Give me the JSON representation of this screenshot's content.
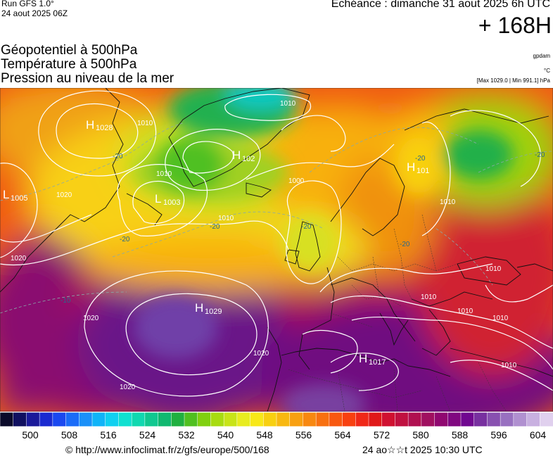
{
  "header": {
    "run_model": "Run GFS 1.0°",
    "run_date": "24 aout 2025 06Z",
    "valid_time": "Echéance : dimanche 31 aout 2025 6h UTC",
    "lead_time": "+ 168H"
  },
  "titles": {
    "line1": "Géopotentiel à 500hPa",
    "line2": "Température à 500hPa",
    "line3": "Pression au niveau de la mer"
  },
  "units": {
    "geopotential": "gpdam",
    "temperature": "°C",
    "pressure_range": "[Max 1029.0 | Min 991.1] hPa"
  },
  "pressure_centers": [
    {
      "label": "H",
      "value": "1028",
      "region": "northern-canada"
    },
    {
      "label": "L",
      "value": "1005",
      "region": "labrador"
    },
    {
      "label": "L",
      "value": "1003",
      "region": "south-of-greenland"
    },
    {
      "label": "H",
      "value": "102",
      "region": "greenland"
    },
    {
      "label": "H",
      "value": "1029",
      "region": "azores"
    },
    {
      "label": "H",
      "value": "1017",
      "region": "north-africa"
    },
    {
      "label": "H",
      "value": "101",
      "region": "scandinavia"
    }
  ],
  "isobar_labels": [
    "1010",
    "1020",
    "1010",
    "1020",
    "1000",
    "1010",
    "1020",
    "1020",
    "1020",
    "1010",
    "1010",
    "1010",
    "1010",
    "1010",
    "1010",
    "1010"
  ],
  "isotherm_labels": [
    "-20",
    "-20",
    "-20",
    "-20",
    "-20",
    "-20",
    "-10",
    "-20"
  ],
  "color_scale": {
    "colors": [
      "#0a0a2a",
      "#101060",
      "#1a1a9a",
      "#1a2ad0",
      "#1a48f0",
      "#1a6cf8",
      "#1a90f8",
      "#10b4f8",
      "#10d0f0",
      "#10e0d0",
      "#10d8b0",
      "#10c890",
      "#10b870",
      "#20b040",
      "#50c020",
      "#80d010",
      "#a8dc10",
      "#c8e418",
      "#e8ec20",
      "#f8e818",
      "#f8d010",
      "#f8b810",
      "#f8a010",
      "#f88810",
      "#f87010",
      "#f85810",
      "#f84010",
      "#f02818",
      "#e01818",
      "#d01030",
      "#c01040",
      "#b01050",
      "#a01060",
      "#900870",
      "#800880",
      "#700890",
      "#7830a0",
      "#8850b0",
      "#9870c0",
      "#b090d0",
      "#c8b0e0",
      "#e0d0ee"
    ],
    "tick_labels": [
      "500",
      "508",
      "516",
      "524",
      "532",
      "540",
      "548",
      "556",
      "564",
      "572",
      "580",
      "588",
      "596",
      "604"
    ]
  },
  "footer": {
    "url": "© http://www.infoclimat.fr/z/gfs/europe/500/168",
    "generated": "24 ao☆☆t 2025 10:30 UTC"
  }
}
